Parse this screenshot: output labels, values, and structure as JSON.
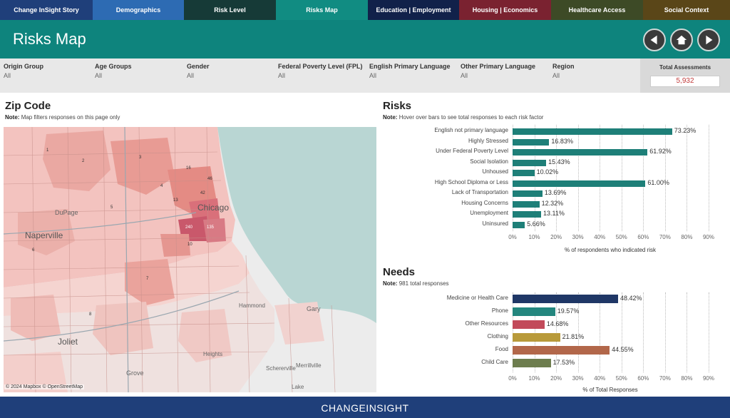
{
  "nav": {
    "tabs": [
      {
        "label": "Change InSight Story",
        "color": "#1f3f7a"
      },
      {
        "label": "Demographics",
        "color": "#2d6bb3"
      },
      {
        "label": "Risk Level",
        "color": "#163a37"
      },
      {
        "label": "Risks Map",
        "color": "#118c82"
      },
      {
        "label": "Education | Employment",
        "color": "#11214a"
      },
      {
        "label": "Housing | Economics",
        "color": "#7a2230"
      },
      {
        "label": "Healthcare Access",
        "color": "#3d4a26"
      },
      {
        "label": "Social Context",
        "color": "#5a4618"
      }
    ]
  },
  "header": {
    "title": "Risks Map",
    "back_icon": "arrow-left-icon",
    "home_icon": "home-icon",
    "next_icon": "arrow-right-icon"
  },
  "filters": [
    {
      "label": "Origin Group",
      "value": "All"
    },
    {
      "label": "Age Groups",
      "value": "All"
    },
    {
      "label": "Gender",
      "value": "All"
    },
    {
      "label": "Federal Poverty Level (FPL)",
      "value": "All"
    },
    {
      "label": "English Primary Language",
      "value": "All"
    },
    {
      "label": "Other Primary Language",
      "value": "All"
    },
    {
      "label": "Region",
      "value": "All"
    }
  ],
  "total": {
    "label": "Total Assessments",
    "value": "5,932"
  },
  "zip": {
    "title": "Zip Code",
    "note_prefix": "Note:",
    "note": "Map filters responses on this page only",
    "credit": "© 2024 Mapbox © OpenStreetMap",
    "places": [
      "DuPage",
      "Naperville",
      "Chicago",
      "Joliet",
      "Gary",
      "Hammond",
      "Heights",
      "Schererville",
      "Merrillville",
      "Lake",
      "Grove"
    ],
    "region_numbers": [
      "1",
      "2",
      "3",
      "4",
      "5",
      "6",
      "7",
      "8",
      "10",
      "13",
      "16",
      "42",
      "46",
      "240",
      "135"
    ]
  },
  "risks": {
    "title": "Risks",
    "note_prefix": "Note:",
    "note": "Hover over bars to see total responses to each risk factor",
    "axis_title": "% of respondents who indicated risk",
    "ticks": [
      "0%",
      "10%",
      "20%",
      "30%",
      "40%",
      "50%",
      "60%",
      "70%",
      "80%",
      "90%"
    ],
    "color": "#1e7f78"
  },
  "needs": {
    "title": "Needs",
    "note_prefix": "Note:",
    "note": "981 total responses",
    "axis_title": "% of Total Responses",
    "ticks": [
      "0%",
      "10%",
      "20%",
      "30%",
      "40%",
      "50%",
      "60%",
      "70%",
      "80%",
      "90%"
    ]
  },
  "chart_data": [
    {
      "type": "bar",
      "orientation": "horizontal",
      "title": "Risks",
      "xlabel": "% of respondents who indicated risk",
      "xlim": [
        0,
        90
      ],
      "categories": [
        "English not primary language",
        "Highly Stressed",
        "Under Federal Poverty Level",
        "Social Isolation",
        "Unhoused",
        "High School Diploma or Less",
        "Lack of Transportation",
        "Housing Concerns",
        "Unemployment",
        "Uninsured"
      ],
      "values": [
        73.23,
        16.83,
        61.92,
        15.43,
        10.02,
        61.0,
        13.69,
        12.32,
        13.11,
        5.66
      ],
      "labels": [
        "73.23%",
        "16.83%",
        "61.92%",
        "15.43%",
        "10.02%",
        "61.00%",
        "13.69%",
        "12.32%",
        "13.11%",
        "5.66%"
      ]
    },
    {
      "type": "bar",
      "orientation": "horizontal",
      "title": "Needs",
      "xlabel": "% of Total Responses",
      "xlim": [
        0,
        90
      ],
      "categories": [
        "Medicine or Health Care",
        "Phone",
        "Other Resources",
        "Clothing",
        "Food",
        "Child Care"
      ],
      "values": [
        48.42,
        19.57,
        14.68,
        21.81,
        44.55,
        17.53
      ],
      "labels": [
        "48.42%",
        "19.57%",
        "14.68%",
        "21.81%",
        "44.55%",
        "17.53%"
      ],
      "colors": [
        "#1f3766",
        "#23867e",
        "#c24a5a",
        "#b89a3a",
        "#b2674a",
        "#6d7d4e"
      ]
    }
  ],
  "footer": {
    "brand": "CHANGEINSIGHT"
  }
}
